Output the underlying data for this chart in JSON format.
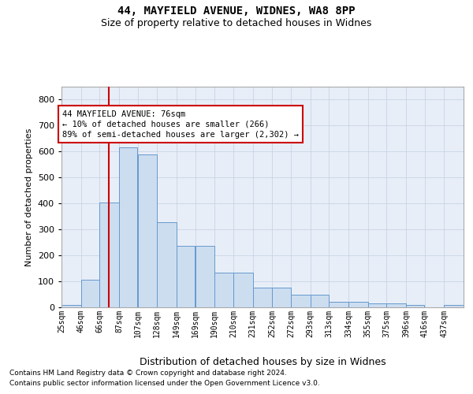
{
  "title1": "44, MAYFIELD AVENUE, WIDNES, WA8 8PP",
  "title2": "Size of property relative to detached houses in Widnes",
  "xlabel": "Distribution of detached houses by size in Widnes",
  "ylabel": "Number of detached properties",
  "footnote1": "Contains HM Land Registry data © Crown copyright and database right 2024.",
  "footnote2": "Contains public sector information licensed under the Open Government Licence v3.0.",
  "annotation_line1": "44 MAYFIELD AVENUE: 76sqm",
  "annotation_line2": "← 10% of detached houses are smaller (266)",
  "annotation_line3": "89% of semi-detached houses are larger (2,302) →",
  "bar_color": "#ccddf0",
  "bar_edge_color": "#6699cc",
  "grid_color": "#c8d4e4",
  "background_color": "#e8eef8",
  "vline_color": "#cc0000",
  "vline_x": 76,
  "categories": [
    "25sqm",
    "46sqm",
    "66sqm",
    "87sqm",
    "107sqm",
    "128sqm",
    "149sqm",
    "169sqm",
    "190sqm",
    "210sqm",
    "231sqm",
    "252sqm",
    "272sqm",
    "293sqm",
    "313sqm",
    "334sqm",
    "355sqm",
    "375sqm",
    "396sqm",
    "416sqm",
    "437sqm"
  ],
  "bin_edges": [
    25,
    46,
    66,
    87,
    107,
    128,
    149,
    169,
    190,
    210,
    231,
    252,
    272,
    293,
    313,
    334,
    355,
    375,
    396,
    416,
    437,
    458
  ],
  "values": [
    8,
    107,
    403,
    615,
    590,
    328,
    238,
    238,
    133,
    133,
    77,
    77,
    50,
    50,
    22,
    22,
    16,
    16,
    9,
    0,
    9
  ],
  "ylim": [
    0,
    850
  ],
  "yticks": [
    0,
    100,
    200,
    300,
    400,
    500,
    600,
    700,
    800
  ]
}
